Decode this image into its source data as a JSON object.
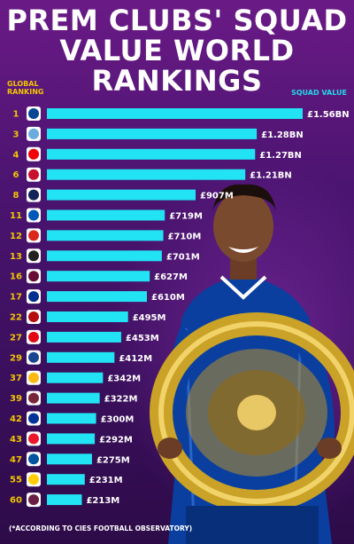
{
  "title_lines": [
    "PREM CLUBS' SQUAD",
    "VALUE WORLD",
    "RANKINGS"
  ],
  "headers": {
    "global_ranking_line1": "GLOBAL",
    "global_ranking_line2": "RANKING",
    "squad_value": "SQUAD VALUE"
  },
  "footnote": "(*ACCORDING TO CIES FOOTBALL OBSERVATORY)",
  "colors": {
    "bar": "#22e3f4",
    "rank_text": "#f2c500",
    "value_text": "#ffffff",
    "badge_ring": "#ffffff",
    "chelsea_blue": "#0a3fa0"
  },
  "chart_data": {
    "type": "bar",
    "orientation": "horizontal",
    "title": "PREM CLUBS' SQUAD VALUE WORLD RANKINGS",
    "xlabel": "SQUAD VALUE",
    "ylabel": "GLOBAL RANKING",
    "unit": "£M",
    "xlim": [
      0,
      1560
    ],
    "categories": [
      "1",
      "3",
      "4",
      "6",
      "8",
      "11",
      "12",
      "13",
      "16",
      "17",
      "22",
      "27",
      "29",
      "37",
      "39",
      "42",
      "43",
      "47",
      "55",
      "60"
    ],
    "values": [
      1560,
      1280,
      1270,
      1210,
      907,
      719,
      710,
      701,
      627,
      610,
      495,
      453,
      412,
      342,
      322,
      300,
      292,
      275,
      231,
      213
    ],
    "value_labels": [
      "£1.56BN",
      "£1.28BN",
      "£1.27BN",
      "£1.21BN",
      "£907M",
      "£719M",
      "£710M",
      "£701M",
      "£627M",
      "£610M",
      "£495M",
      "£453M",
      "£412M",
      "£342M",
      "£322M",
      "£300M",
      "£292M",
      "£275M",
      "£231M",
      "£213M"
    ],
    "badge_colors": [
      "#034694",
      "#6cabdd",
      "#ef0107",
      "#c8102e",
      "#132257",
      "#0057b8",
      "#da291c",
      "#241f20",
      "#670e36",
      "#003090",
      "#b50e12",
      "#e30613",
      "#1b458f",
      "#fdb913",
      "#7a263a",
      "#003399",
      "#eb172b",
      "#0053a0",
      "#ffcd00",
      "#6c1d45"
    ],
    "badge_icons": [
      "chelsea-badge-icon",
      "man-city-badge-icon",
      "arsenal-badge-icon",
      "liverpool-badge-icon",
      "tottenham-badge-icon",
      "brighton-badge-icon",
      "man-utd-badge-icon",
      "newcastle-badge-icon",
      "aston-villa-badge-icon",
      "leicester-badge-icon",
      "bournemouth-badge-icon",
      "southampton-badge-icon",
      "crystal-palace-badge-icon",
      "wolves-badge-icon",
      "west-ham-badge-icon",
      "everton-badge-icon",
      "sheffield-utd-badge-icon",
      "watford-badge-icon",
      "norwich-badge-icon",
      "burnley-badge-icon"
    ]
  }
}
